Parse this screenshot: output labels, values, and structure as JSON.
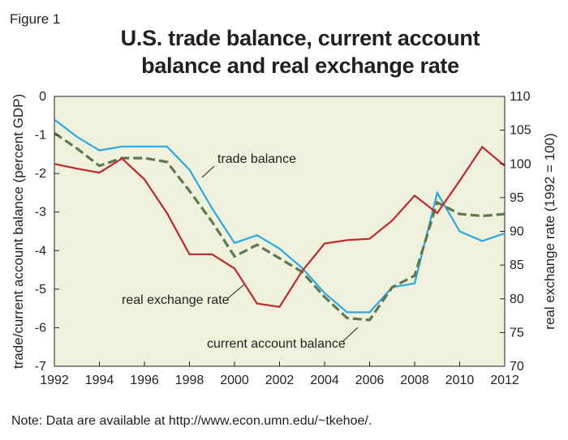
{
  "figure_label": "Figure 1",
  "title_line1": "U.S. trade balance, current account",
  "title_line2": "balance and real exchange rate",
  "note": "Note: Data are available at http://www.econ.umn.edu/~tkehoe/.",
  "colors": {
    "plot_bg": "#eff1dc",
    "trade_balance": "#2ba8e0",
    "current_account": "#5d7a4e",
    "real_exchange_rate": "#c1272d"
  },
  "chart_data": {
    "type": "line",
    "title": "U.S. trade balance, current account balance and real exchange rate",
    "xlabel": "",
    "ylabel": "trade/current account balance (percent GDP)",
    "y2label": "real exchange rate (1992 = 100)",
    "xlim": [
      1992,
      2012
    ],
    "ylim": [
      -7,
      0
    ],
    "y2lim": [
      70,
      110
    ],
    "x_ticks": [
      "1992",
      "1994",
      "1996",
      "1998",
      "2000",
      "2002",
      "2004",
      "2006",
      "2008",
      "2010",
      "2012"
    ],
    "y_ticks": [
      "0",
      "-1",
      "-2",
      "-3",
      "-4",
      "-5",
      "-6",
      "-7"
    ],
    "y2_ticks": [
      "110",
      "105",
      "100",
      "95",
      "90",
      "85",
      "80",
      "75",
      "70"
    ],
    "grid": false,
    "x": [
      1992,
      1993,
      1994,
      1995,
      1996,
      1997,
      1998,
      1999,
      2000,
      2001,
      2002,
      2003,
      2004,
      2005,
      2006,
      2007,
      2008,
      2009,
      2010,
      2011,
      2012
    ],
    "series": [
      {
        "name": "trade balance",
        "axis": "left",
        "style": "solid",
        "values": [
          -0.6,
          -1.05,
          -1.4,
          -1.3,
          -1.3,
          -1.3,
          -1.9,
          -2.9,
          -3.8,
          -3.6,
          -3.95,
          -4.45,
          -5.1,
          -5.6,
          -5.6,
          -4.95,
          -4.85,
          -2.5,
          -3.5,
          -3.75,
          -3.55
        ]
      },
      {
        "name": "current account balance",
        "axis": "left",
        "style": "dashed",
        "values": [
          -0.95,
          -1.35,
          -1.8,
          -1.6,
          -1.6,
          -1.7,
          -2.45,
          -3.25,
          -4.15,
          -3.85,
          -4.2,
          -4.55,
          -5.2,
          -5.75,
          -5.8,
          -4.95,
          -4.65,
          -2.75,
          -3.05,
          -3.1,
          -3.05
        ]
      },
      {
        "name": "real exchange rate",
        "axis": "right",
        "style": "solid",
        "values": [
          100,
          99.3,
          98.7,
          100.8,
          97.7,
          92.7,
          86.6,
          86.6,
          84.5,
          79.3,
          78.8,
          84.1,
          88.2,
          88.7,
          88.9,
          91.6,
          95.3,
          92.7,
          97.5,
          102.5,
          99.7
        ]
      }
    ],
    "annotations": [
      {
        "text": "trade balance",
        "series": "trade balance"
      },
      {
        "text": "real exchange rate",
        "series": "real exchange rate"
      },
      {
        "text": "current account balance",
        "series": "current account balance"
      }
    ]
  }
}
